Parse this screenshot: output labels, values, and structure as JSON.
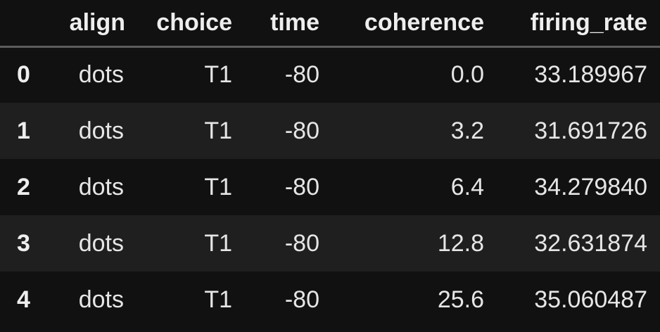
{
  "table": {
    "columns": [
      "",
      "align",
      "choice",
      "time",
      "coherence",
      "firing_rate"
    ],
    "rows": [
      {
        "index": "0",
        "align": "dots",
        "choice": "T1",
        "time": "-80",
        "coherence": "0.0",
        "firing_rate": "33.189967"
      },
      {
        "index": "1",
        "align": "dots",
        "choice": "T1",
        "time": "-80",
        "coherence": "3.2",
        "firing_rate": "31.691726"
      },
      {
        "index": "2",
        "align": "dots",
        "choice": "T1",
        "time": "-80",
        "coherence": "6.4",
        "firing_rate": "34.279840"
      },
      {
        "index": "3",
        "align": "dots",
        "choice": "T1",
        "time": "-80",
        "coherence": "12.8",
        "firing_rate": "32.631874"
      },
      {
        "index": "4",
        "align": "dots",
        "choice": "T1",
        "time": "-80",
        "coherence": "25.6",
        "firing_rate": "35.060487"
      }
    ]
  },
  "colors": {
    "background": "#111111",
    "stripe": "#1f1f1f",
    "text": "#e6e6e6",
    "header_rule": "#5c5c5c"
  }
}
